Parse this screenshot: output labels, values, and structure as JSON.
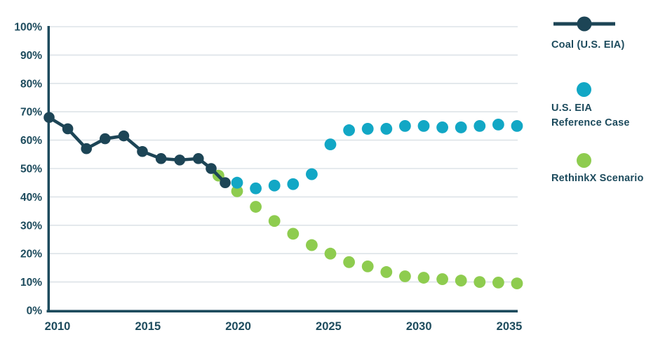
{
  "chart_data": {
    "type": "line",
    "title": "",
    "xlabel": "",
    "ylabel": "",
    "grid": "horizontal",
    "legend_position": "right",
    "xlim": [
      2009.5,
      2035.5
    ],
    "ylim": [
      0,
      100
    ],
    "x_ticks": [
      2010,
      2015,
      2020,
      2025,
      2030,
      2035
    ],
    "x_tick_labels": [
      "2010",
      "2015",
      "2020",
      "2025",
      "2030",
      "2035"
    ],
    "y_ticks": [
      0,
      10,
      20,
      30,
      40,
      50,
      60,
      70,
      80,
      90,
      100
    ],
    "y_tick_labels": [
      "0%",
      "10%",
      "20%",
      "30%",
      "40%",
      "50%",
      "60%",
      "70%",
      "80%",
      "90%",
      "100%"
    ],
    "colors": {
      "axis": "#1d4b5d",
      "axis_text": "#1d4b5d",
      "grid": "#dde3e8",
      "background": "#ffffff"
    },
    "series": [
      {
        "name": "Coal (U.S. EIA)",
        "key": "coal",
        "type": "line-with-markers",
        "color": "#1d4556",
        "years": [
          2010,
          2011,
          2012,
          2013,
          2014,
          2015,
          2016,
          2017,
          2018,
          2019,
          2020
        ],
        "values": [
          68,
          64,
          57,
          60.5,
          61.5,
          56,
          53.5,
          53,
          53.5,
          50,
          45
        ]
      },
      {
        "name": "U.S. EIA Reference Case",
        "key": "eia-reference",
        "type": "scatter",
        "color": "#12a7c5",
        "years": [
          2020,
          2021,
          2022,
          2023,
          2024,
          2025,
          2026,
          2027,
          2028,
          2029,
          2030,
          2031,
          2032,
          2033,
          2034,
          2035
        ],
        "values": [
          45,
          43,
          44,
          44.5,
          48,
          58.5,
          63.5,
          64,
          64,
          65,
          65,
          64.5,
          64.5,
          65,
          65.5,
          65
        ]
      },
      {
        "name": "RethinkX Scenario",
        "key": "rethinkx",
        "type": "scatter",
        "color": "#8ecc4f",
        "years": [
          2019,
          2020,
          2021,
          2022,
          2023,
          2024,
          2025,
          2026,
          2027,
          2028,
          2029,
          2030,
          2031,
          2032,
          2033,
          2034,
          2035
        ],
        "values": [
          47.5,
          42,
          36.5,
          31.5,
          27,
          23,
          20,
          17,
          15.5,
          13.5,
          12,
          11.5,
          11,
          10.5,
          10,
          9.8,
          9.5
        ]
      }
    ]
  }
}
